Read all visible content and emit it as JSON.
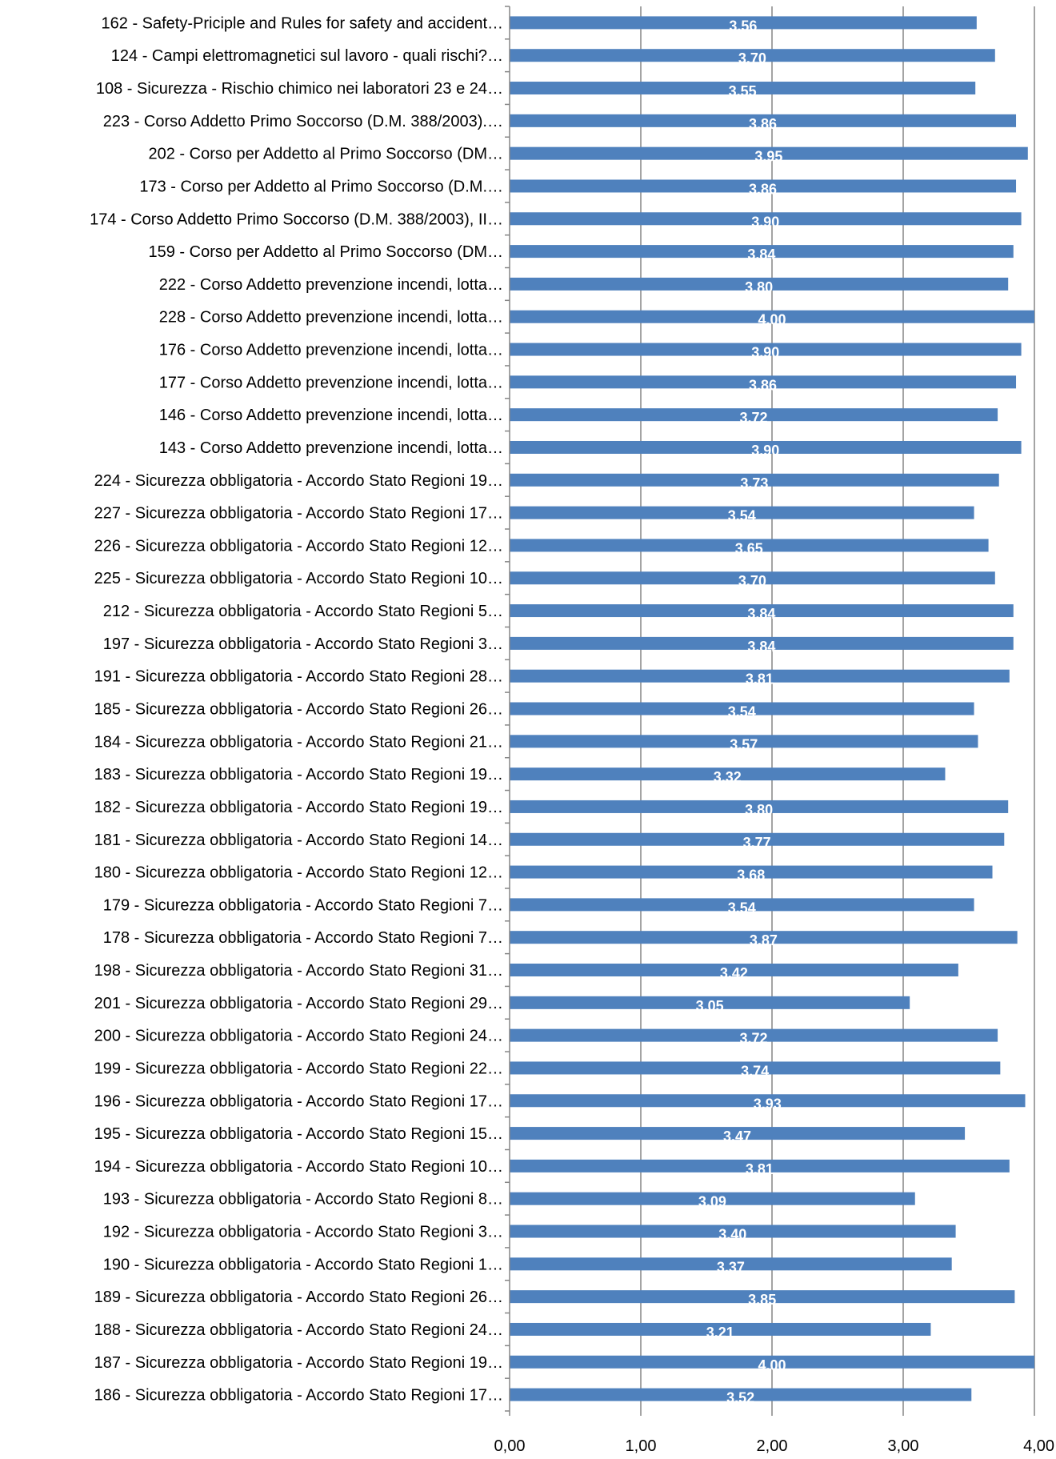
{
  "chart_data": {
    "type": "bar",
    "orientation": "horizontal",
    "categories": [
      "162 - Safety-Priciple and Rules for safety and accident…",
      "124 - Campi elettromagnetici sul lavoro - quali rischi?…",
      "108 - Sicurezza - Rischio chimico nei laboratori 23 e 24…",
      "223 - Corso Addetto Primo Soccorso (D.M. 388/2003).…",
      "202 - Corso per Addetto al Primo Soccorso (DM…",
      "173 - Corso per Addetto al Primo Soccorso (D.M.…",
      "174 - Corso Addetto Primo Soccorso (D.M. 388/2003), II…",
      "159 - Corso per Addetto al Primo Soccorso (DM…",
      "222 - Corso Addetto prevenzione incendi, lotta…",
      "228 - Corso Addetto prevenzione incendi, lotta…",
      "176 - Corso Addetto prevenzione incendi, lotta…",
      "177 - Corso Addetto prevenzione incendi, lotta…",
      "146 - Corso Addetto prevenzione incendi, lotta…",
      "143 - Corso Addetto prevenzione incendi, lotta…",
      "224 - Sicurezza obbligatoria - Accordo Stato Regioni 19…",
      "227 - Sicurezza obbligatoria - Accordo Stato Regioni 17…",
      "226 - Sicurezza obbligatoria - Accordo Stato Regioni 12…",
      "225 - Sicurezza obbligatoria - Accordo Stato Regioni 10…",
      "212 - Sicurezza obbligatoria - Accordo Stato Regioni 5…",
      "197 - Sicurezza obbligatoria - Accordo Stato Regioni 3…",
      "191 - Sicurezza obbligatoria - Accordo Stato Regioni 28…",
      "185 - Sicurezza obbligatoria - Accordo Stato Regioni 26…",
      "184 - Sicurezza obbligatoria - Accordo Stato Regioni 21…",
      "183 - Sicurezza obbligatoria - Accordo Stato Regioni 19…",
      "182 - Sicurezza obbligatoria - Accordo Stato Regioni 19…",
      "181 - Sicurezza obbligatoria - Accordo Stato Regioni 14…",
      "180 - Sicurezza obbligatoria - Accordo Stato Regioni 12…",
      "179 - Sicurezza obbligatoria - Accordo Stato Regioni 7…",
      "178 - Sicurezza obbligatoria - Accordo Stato Regioni 7…",
      "198 - Sicurezza obbligatoria - Accordo Stato Regioni 31…",
      "201 - Sicurezza obbligatoria - Accordo Stato Regioni 29…",
      "200 - Sicurezza obbligatoria - Accordo Stato Regioni 24…",
      "199 - Sicurezza obbligatoria - Accordo Stato Regioni 22…",
      "196 - Sicurezza obbligatoria - Accordo Stato Regioni 17…",
      "195 - Sicurezza obbligatoria - Accordo Stato Regioni 15…",
      "194 - Sicurezza obbligatoria - Accordo Stato Regioni 10…",
      "193 - Sicurezza obbligatoria - Accordo Stato Regioni 8…",
      "192 - Sicurezza obbligatoria - Accordo Stato Regioni 3…",
      "190 - Sicurezza obbligatoria - Accordo Stato Regioni 1…",
      "189 - Sicurezza obbligatoria - Accordo Stato Regioni 26…",
      "188 - Sicurezza obbligatoria - Accordo Stato Regioni 24…",
      "187 - Sicurezza obbligatoria - Accordo Stato Regioni 19…",
      "186 - Sicurezza obbligatoria - Accordo Stato Regioni 17…"
    ],
    "values": [
      3.56,
      3.7,
      3.55,
      3.86,
      3.95,
      3.86,
      3.9,
      3.84,
      3.8,
      4.0,
      3.9,
      3.86,
      3.72,
      3.9,
      3.73,
      3.54,
      3.65,
      3.7,
      3.84,
      3.84,
      3.81,
      3.54,
      3.57,
      3.32,
      3.8,
      3.77,
      3.68,
      3.54,
      3.87,
      3.42,
      3.05,
      3.72,
      3.74,
      3.93,
      3.47,
      3.81,
      3.09,
      3.4,
      3.37,
      3.85,
      3.21,
      4.0,
      3.52
    ],
    "data_labels": [
      "3.56",
      "3.70",
      "3.55",
      "3.86",
      "3.95",
      "3.86",
      "3.90",
      "3.84",
      "3.80",
      "4.00",
      "3.90",
      "3.86",
      "3.72",
      "3.90",
      "3.73",
      "3.54",
      "3.65",
      "3.70",
      "3.84",
      "3.84",
      "3.81",
      "3.54",
      "3.57",
      "3.32",
      "3.80",
      "3.77",
      "3.68",
      "3.54",
      "3.87",
      "3.42",
      "3.05",
      "3.72",
      "3.74",
      "3.93",
      "3.47",
      "3.81",
      "3.09",
      "3.40",
      "3.37",
      "3.85",
      "3.21",
      "4.00",
      "3.52"
    ],
    "xticks": [
      0,
      1,
      2,
      3,
      4
    ],
    "xtick_labels": [
      "0,00",
      "1,00",
      "2,00",
      "3,00",
      "4,00"
    ],
    "xlim": [
      0,
      4
    ],
    "title": "",
    "xlabel": "",
    "ylabel": "",
    "grid": "vertical",
    "legend": "none",
    "colors": {
      "bar": "#4f81bd",
      "grid": "#868686",
      "axis": "#868686",
      "data_label": "#ffffff",
      "text": "#000000"
    }
  }
}
